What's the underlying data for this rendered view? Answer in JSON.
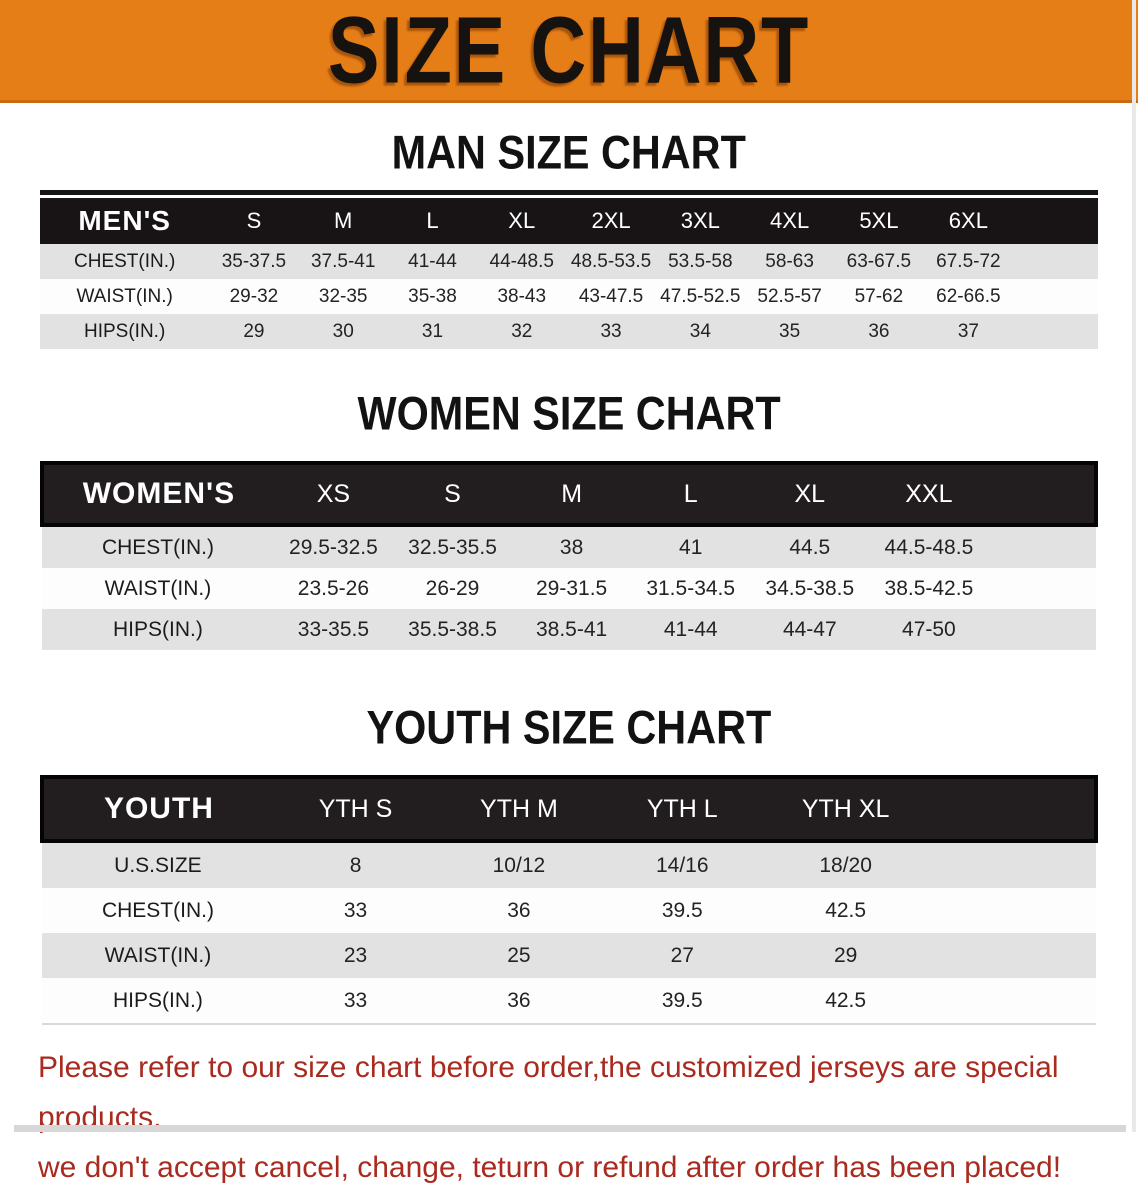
{
  "banner": {
    "title": "SIZE CHART",
    "bg_color": "#E67E17",
    "text_color": "#151210"
  },
  "sections": [
    {
      "heading": "MAN SIZE CHART",
      "table": {
        "label": "MEN'S",
        "columns": [
          "S",
          "M",
          "L",
          "XL",
          "2XL",
          "3XL",
          "4XL",
          "5XL",
          "6XL"
        ],
        "rows": [
          {
            "label": "CHEST(IN.)",
            "values": [
              "35-37.5",
              "37.5-41",
              "41-44",
              "44-48.5",
              "48.5-53.5",
              "53.5-58",
              "58-63",
              "63-67.5",
              "67.5-72"
            ]
          },
          {
            "label": "WAIST(IN.)",
            "values": [
              "29-32",
              "32-35",
              "35-38",
              "38-43",
              "43-47.5",
              "47.5-52.5",
              "52.5-57",
              "57-62",
              "62-66.5"
            ]
          },
          {
            "label": "HIPS(IN.)",
            "values": [
              "29",
              "30",
              "31",
              "32",
              "33",
              "34",
              "35",
              "36",
              "37"
            ]
          }
        ]
      }
    },
    {
      "heading": "WOMEN SIZE CHART",
      "table": {
        "label": "WOMEN'S",
        "columns": [
          "XS",
          "S",
          "M",
          "L",
          "XL",
          "XXL"
        ],
        "rows": [
          {
            "label": "CHEST(IN.)",
            "values": [
              "29.5-32.5",
              "32.5-35.5",
              "38",
              "41",
              "44.5",
              "44.5-48.5"
            ]
          },
          {
            "label": "WAIST(IN.)",
            "values": [
              "23.5-26",
              "26-29",
              "29-31.5",
              "31.5-34.5",
              "34.5-38.5",
              "38.5-42.5"
            ]
          },
          {
            "label": "HIPS(IN.)",
            "values": [
              "33-35.5",
              "35.5-38.5",
              "38.5-41",
              "41-44",
              "44-47",
              "47-50"
            ]
          }
        ]
      }
    },
    {
      "heading": "YOUTH SIZE CHART",
      "table": {
        "label": "YOUTH",
        "columns": [
          "YTH S",
          "YTH M",
          "YTH L",
          "YTH XL"
        ],
        "rows": [
          {
            "label": "U.S.SIZE",
            "values": [
              "8",
              "10/12",
              "14/16",
              "18/20"
            ]
          },
          {
            "label": "CHEST(IN.)",
            "values": [
              "33",
              "36",
              "39.5",
              "42.5"
            ]
          },
          {
            "label": "WAIST(IN.)",
            "values": [
              "23",
              "25",
              "27",
              "29"
            ]
          },
          {
            "label": "HIPS(IN.)",
            "values": [
              "33",
              "36",
              "39.5",
              "42.5"
            ]
          }
        ]
      }
    }
  ],
  "footer": {
    "line1": "Please refer to our size chart before order,the customized jerseys are special products,",
    "line2": "we don't accept cancel, change, teturn or refund after order has been placed!",
    "text_color": "#A92A1E"
  },
  "table_colors": {
    "header_bg": "#181415",
    "row_gray": "#E2E2E2",
    "row_white": "#FDFDFD"
  }
}
